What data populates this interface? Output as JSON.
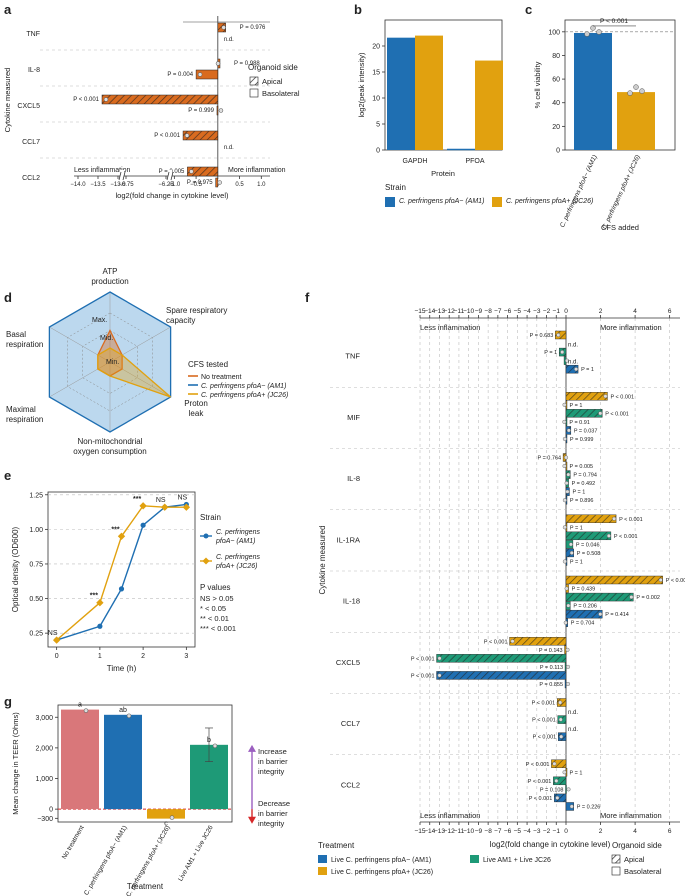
{
  "colors": {
    "orange": "#d96b1f",
    "blue": "#1f6fb2",
    "gold": "#e1a10f",
    "green": "#1e9a77",
    "pink": "#d9777a",
    "purple": "#9b5fc0",
    "red": "#d62728"
  },
  "chart_data": [
    {
      "panel": "a",
      "type": "bar",
      "orientation": "horizontal",
      "ylabel": "Cytokine measured",
      "xlabel": "log2(fold change in cytokine level)",
      "xlim": [
        -14,
        1.2
      ],
      "xticks": [
        "−14.0",
        "−13.5",
        "−13.0",
        "−6.75",
        "−6.25",
        "−1.0",
        "−0.5",
        "0",
        "0.5",
        "1.0"
      ],
      "left_note": "Less inflammation",
      "right_note": "More inflammation",
      "legend_title": "Organoid side",
      "legend": [
        "Apical",
        "Basolateral"
      ],
      "categories": [
        "TNF",
        "IL-8",
        "CXCL5",
        "CCL7",
        "CCL2"
      ],
      "series": [
        {
          "name": "Apical",
          "values": [
            0.18,
            0.05,
            -13.4,
            -0.8,
            -0.7
          ],
          "labels": [
            "P = 0.976",
            "P = 0.988",
            "P < 0.001",
            "P < 0.001",
            "P = 0.005"
          ]
        },
        {
          "name": "Basolateral",
          "values": [
            0,
            -0.5,
            -0.02,
            0,
            -0.05
          ],
          "labels": [
            "n.d.",
            "P = 0.004",
            "P = 0.999",
            "n.d.",
            "P = 0.975"
          ]
        }
      ]
    },
    {
      "panel": "b",
      "type": "bar",
      "ylabel": "log2(peak intensity)",
      "xlabel": "Protein",
      "ylim": [
        0,
        25
      ],
      "yticks": [
        "0",
        "5",
        "10",
        "15",
        "20"
      ],
      "categories": [
        "GAPDH",
        "PFOA"
      ],
      "legend_title": "Strain",
      "legend": [
        "C. perfringens pfoA− (AM1)",
        "C. perfringens pfoA+ (JC26)"
      ],
      "series": [
        {
          "name": "AM1",
          "values": [
            21.6,
            0
          ]
        },
        {
          "name": "JC26",
          "values": [
            22.0,
            17.2
          ]
        }
      ]
    },
    {
      "panel": "c",
      "type": "bar",
      "ylabel": "% cell viability",
      "xlabel": "CFS added",
      "ylim": [
        0,
        110
      ],
      "yticks": [
        "0",
        "20",
        "40",
        "60",
        "80",
        "100"
      ],
      "categories": [
        "C. perfringens pfoA− (AM1)",
        "C. perfringens pfoA+ (JC26)"
      ],
      "values": [
        99,
        49
      ],
      "annotation": "P < 0.001"
    },
    {
      "panel": "d",
      "type": "radar",
      "axes": [
        "ATP production",
        "Spare respiratory capacity",
        "Proton leak",
        "Non-mitochondrial oxygen consumption",
        "Maximal respiration",
        "Basal respiration"
      ],
      "rings": [
        "Min.",
        "Mid.",
        "Max."
      ],
      "legend_title": "CFS tested",
      "series": [
        {
          "name": "No treatment",
          "values": [
            0.45,
            0.2,
            0.2,
            0.2,
            0.2,
            0.2
          ]
        },
        {
          "name": "C. perfringens pfoA− (AM1)",
          "values": [
            1,
            1,
            1,
            1,
            1,
            1
          ]
        },
        {
          "name": "C. perfringens pfoA+ (JC26)",
          "values": [
            0.2,
            0.2,
            1,
            0.2,
            0.2,
            0.2
          ]
        }
      ]
    },
    {
      "panel": "e",
      "type": "line",
      "xlabel": "Time (h)",
      "ylabel": "Optical density (OD600)",
      "xlim": [
        -0.2,
        3.2
      ],
      "ylim": [
        0.15,
        1.27
      ],
      "xticks": [
        "0",
        "1",
        "2",
        "3"
      ],
      "yticks": [
        "0.25",
        "0.50",
        "0.75",
        "1.00",
        "1.25"
      ],
      "legend_title": "Strain",
      "series": [
        {
          "name": "C. perfringens pfoA− (AM1)",
          "x": [
            0,
            1,
            1.5,
            2,
            2.5,
            3
          ],
          "y": [
            0.2,
            0.3,
            0.57,
            1.03,
            1.16,
            1.18
          ]
        },
        {
          "name": "C. perfringens pfoA+ (JC26)",
          "x": [
            0,
            1,
            1.5,
            2,
            2.5,
            3
          ],
          "y": [
            0.2,
            0.47,
            0.95,
            1.17,
            1.16,
            1.16
          ]
        }
      ],
      "sig": [
        "NS",
        "***",
        "***",
        "***",
        "NS",
        "NS"
      ],
      "pvalues_title": "P values",
      "pvalues": [
        "NS > 0.05",
        "* < 0.05",
        "** < 0.01",
        "*** < 0.001"
      ]
    },
    {
      "panel": "f",
      "type": "bar",
      "orientation": "horizontal",
      "ylabel": "Cytokine measured",
      "xlabel": "log2(fold change in cytokine level)",
      "xlim": [
        -15,
        6.3
      ],
      "xticks": [
        "−15",
        "−14",
        "−13",
        "−12",
        "−11",
        "−10",
        "−9",
        "−8",
        "−7",
        "−6",
        "−5",
        "−4",
        "−3",
        "−2",
        "−1",
        "0",
        "2",
        "4",
        "6"
      ],
      "left_note": "Less inflammation",
      "right_note": "More inflammation",
      "categories": [
        "TNF",
        "MIF",
        "IL-8",
        "IL-1RA",
        "IL-18",
        "CXCL5",
        "CCL7",
        "CCL2"
      ],
      "series": [
        {
          "name": "Live C. perfringens pfoA+ (JC26) apical",
          "values": [
            -1.1,
            2.4,
            -0.3,
            2.9,
            5.6,
            -5.8,
            -0.9,
            -1.5
          ],
          "labels": [
            "P = 0.683",
            "P < 0.001",
            "P = 0.764",
            "P < 0.001",
            "P < 0.001",
            "P < 0.001",
            "P < 0.001",
            "P < 0.001"
          ]
        },
        {
          "name": "Live C. perfringens pfoA+ (JC26) basolateral",
          "values": [
            0,
            0.03,
            0.03,
            0.05,
            0.15,
            -0.15,
            0,
            0.03
          ],
          "labels": [
            "n.d.",
            "P = 1",
            "P = 0.005",
            "P = 1",
            "P = 0.439",
            "P = 0.143",
            "n.d.",
            "P = 1"
          ]
        },
        {
          "name": "Live AM1 + Live JC26 apical",
          "values": [
            -0.7,
            2.1,
            0.25,
            2.6,
            3.9,
            -13.3,
            -0.85,
            -1.3
          ],
          "labels": [
            "P = 1",
            "P < 0.001",
            "P = 0.794",
            "P < 0.001",
            "P = 0.002",
            "P < 0.001",
            "P < 0.001",
            "P < 0.001"
          ]
        },
        {
          "name": "Live AM1 + Live JC26 basolateral",
          "values": [
            -0.2,
            0.02,
            0.15,
            0.4,
            0.25,
            -0.1,
            0,
            -0.05
          ],
          "labels": [
            "n.d.",
            "P = 0.91",
            "P = 0.492",
            "P = 0.046",
            "P = 0.206",
            "P = 0.113",
            "n.d.",
            "P = 0.108"
          ]
        },
        {
          "name": "Live C. perfringens pfoA− (AM1) apical",
          "values": [
            0.7,
            0.28,
            0.2,
            0.45,
            2.1,
            -13.3,
            -0.8,
            -1.2
          ],
          "labels": [
            "P = 1",
            "P = 0.037",
            "P = 1",
            "P = 0.508",
            "P = 0.414",
            "P < 0.001",
            "P < 0.001",
            "P < 0.001"
          ]
        },
        {
          "name": "Live C. perfringens pfoA− (AM1) basolateral",
          "values": [
            0,
            0.05,
            0.05,
            0.05,
            0.1,
            -0.1,
            0,
            0.45
          ],
          "labels": [
            "",
            "P = 0.999",
            "P = 0.896",
            "P = 1",
            "P = 0.704",
            "P = 0.855",
            "",
            "P = 0.226"
          ]
        }
      ]
    },
    {
      "panel": "g",
      "type": "bar",
      "xlabel": "Treatment",
      "ylabel": "Mean change in TEER (Ohms)",
      "ylim": [
        -420,
        3400
      ],
      "yticks": [
        "−300",
        "0",
        "1,000",
        "2,000",
        "3,000"
      ],
      "categories": [
        "No treatment",
        "Live C. perfringens pfoA− (AM1)",
        "Live C. perfringens pfoA+ (JC26)",
        "Live AM1 + Live JC26"
      ],
      "values": [
        3250,
        3080,
        -310,
        2100
      ],
      "letters": [
        "a",
        "ab",
        "c",
        "b"
      ],
      "arrow_up": "Increase in barrier integrity",
      "arrow_down": "Decrease in barrier integrity"
    }
  ],
  "legend_f": {
    "title": "Treatment",
    "items": [
      "Live C. perfringens pfoA− (AM1)",
      "Live C. perfringens pfoA+ (JC26)",
      "Live AM1 + Live JC26"
    ],
    "side_title": "Organoid side",
    "sides": [
      "Apical",
      "Basolateral"
    ]
  },
  "labels": {
    "a": "a",
    "b": "b",
    "c": "c",
    "d": "d",
    "e": "e",
    "f": "f",
    "g": "g"
  }
}
